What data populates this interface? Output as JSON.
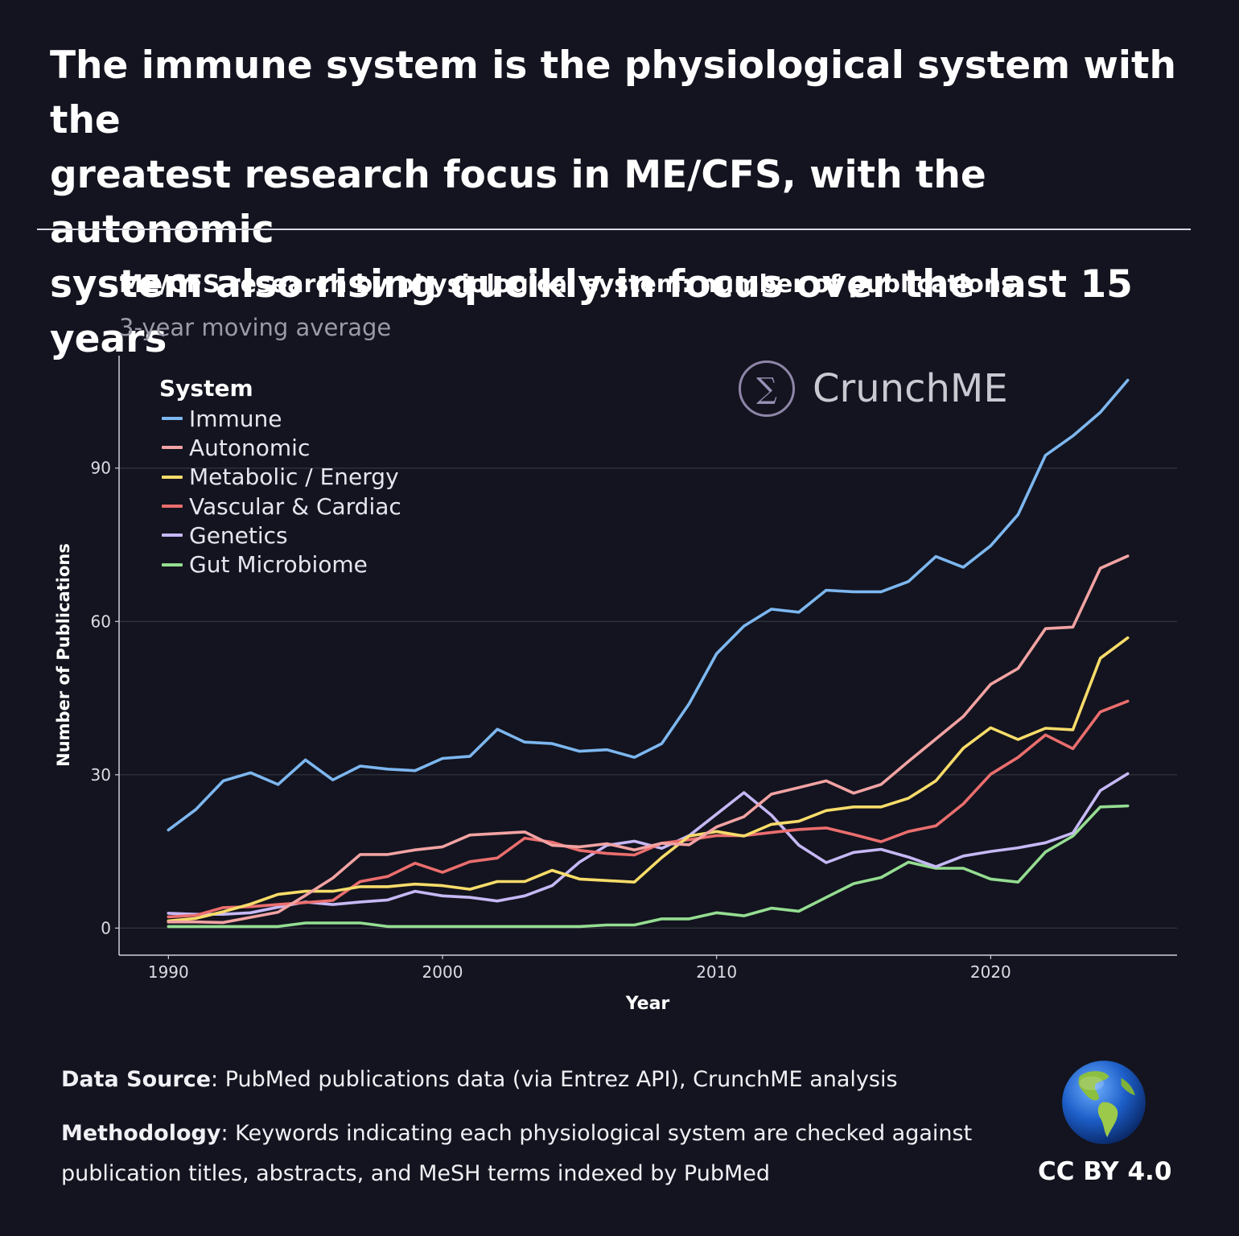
{
  "headline": {
    "line1": "The immune system is the physiological system with the",
    "line2": "greatest research focus in ME/CFS, with the autonomic",
    "line3": "system also rising qucikly in focus over the last 15 years"
  },
  "brand": {
    "icon_glyph": "∑",
    "name": "CrunchME"
  },
  "footer": {
    "source_label": "Data Source",
    "source_text": ": PubMed publications data (via Entrez API), CrunchME analysis",
    "method_label": "Methodology",
    "method_text_line1": ": Keywords indicating each physiological system are checked against",
    "method_text_line2": "publication titles, abstracts, and MeSH terms indexed by PubMed",
    "license": "CC BY 4.0"
  },
  "colors": {
    "background": "#13141f",
    "grid": "#33343f",
    "axis": "#d0d0d8",
    "tick_text": "#dcdce4"
  },
  "chart_data": {
    "type": "line",
    "title": "ME/CFS research by physiological system: number of publications",
    "subtitle": "3-year moving average",
    "xlabel": "Year",
    "ylabel": "Number of Publications",
    "legend_title": "System",
    "legend_position": "top-left",
    "grid": "horizontal",
    "xlim": [
      1988.2,
      2026.8
    ],
    "ylim": [
      -5.3,
      112
    ],
    "xticks": [
      1990,
      2000,
      2010,
      2020
    ],
    "yticks": [
      0,
      30,
      60,
      90
    ],
    "x": [
      1990,
      1991,
      1992,
      1993,
      1994,
      1995,
      1996,
      1997,
      1998,
      1999,
      2000,
      2001,
      2002,
      2003,
      2004,
      2005,
      2006,
      2007,
      2008,
      2009,
      2010,
      2011,
      2012,
      2013,
      2014,
      2015,
      2016,
      2017,
      2018,
      2019,
      2020,
      2021,
      2022,
      2023,
      2024,
      2025
    ],
    "series": [
      {
        "name": "Immune",
        "color": "#7db7f0",
        "values": [
          19.2,
          23.2,
          28.8,
          30.4,
          28.1,
          32.9,
          29,
          31.7,
          31.1,
          30.8,
          33.2,
          33.6,
          38.9,
          36.4,
          36.1,
          34.6,
          34.9,
          33.4,
          36.1,
          43.9,
          53.7,
          59.1,
          62.4,
          61.8,
          66.1,
          65.8,
          65.8,
          67.8,
          72.7,
          70.6,
          74.8,
          80.9,
          92.5,
          96.3,
          100.9,
          107.2
        ]
      },
      {
        "name": "Autonomic",
        "color": "#f2a3a3",
        "values": [
          1.2,
          1.2,
          1.1,
          2.1,
          3.1,
          6.4,
          9.8,
          14.4,
          14.4,
          15.3,
          15.9,
          18.2,
          18.5,
          18.8,
          16.2,
          15.9,
          16.5,
          15.3,
          16.6,
          16.3,
          19.8,
          21.8,
          26.2,
          27.5,
          28.8,
          26.4,
          28.1,
          32.6,
          37,
          41.4,
          47.7,
          50.8,
          58.6,
          58.9,
          70.4,
          72.8
        ]
      },
      {
        "name": "Metabolic / Energy",
        "color": "#f8dc6a",
        "values": [
          1.4,
          1.9,
          3.2,
          4.7,
          6.6,
          7.2,
          7.2,
          8.1,
          8.1,
          8.6,
          8.3,
          7.6,
          9.1,
          9.1,
          11.3,
          9.6,
          9.3,
          9,
          13.8,
          18,
          18.9,
          18,
          20.3,
          20.9,
          23,
          23.7,
          23.7,
          25.4,
          28.8,
          35.2,
          39.2,
          36.9,
          39.1,
          38.8,
          52.8,
          56.8
        ]
      },
      {
        "name": "Vascular & Cardiac",
        "color": "#eb6e6e",
        "values": [
          2.2,
          2.5,
          4,
          4.2,
          4.6,
          5,
          5.4,
          9.1,
          10.1,
          12.7,
          10.9,
          13,
          13.7,
          17.6,
          16.8,
          15.2,
          14.6,
          14.3,
          16.6,
          17.3,
          18.1,
          18.1,
          18.7,
          19.3,
          19.6,
          18.3,
          16.9,
          18.9,
          20,
          24.3,
          30.1,
          33.4,
          37.8,
          35.1,
          42.3,
          44.4
        ]
      },
      {
        "name": "Genetics",
        "color": "#c6b8f5",
        "values": [
          2.9,
          2.7,
          2.7,
          3,
          4.1,
          5.1,
          4.6,
          5.1,
          5.5,
          7.2,
          6.3,
          6,
          5.3,
          6.3,
          8.3,
          12.9,
          16.2,
          17,
          15.6,
          18.1,
          22.3,
          26.5,
          22.1,
          16.2,
          12.8,
          14.8,
          15.4,
          13.9,
          12,
          14.1,
          15,
          15.7,
          16.7,
          18.6,
          26.9,
          30.2
        ]
      },
      {
        "name": "Gut Microbiome",
        "color": "#95dd92",
        "values": [
          0.3,
          0.3,
          0.3,
          0.3,
          0.3,
          1,
          1,
          1,
          0.3,
          0.3,
          0.3,
          0.3,
          0.3,
          0.3,
          0.3,
          0.3,
          0.6,
          0.6,
          1.8,
          1.8,
          3,
          2.4,
          3.9,
          3.3,
          6,
          8.7,
          9.9,
          12.9,
          11.7,
          11.7,
          9.6,
          9,
          14.9,
          18,
          23.7,
          23.9
        ]
      }
    ]
  }
}
